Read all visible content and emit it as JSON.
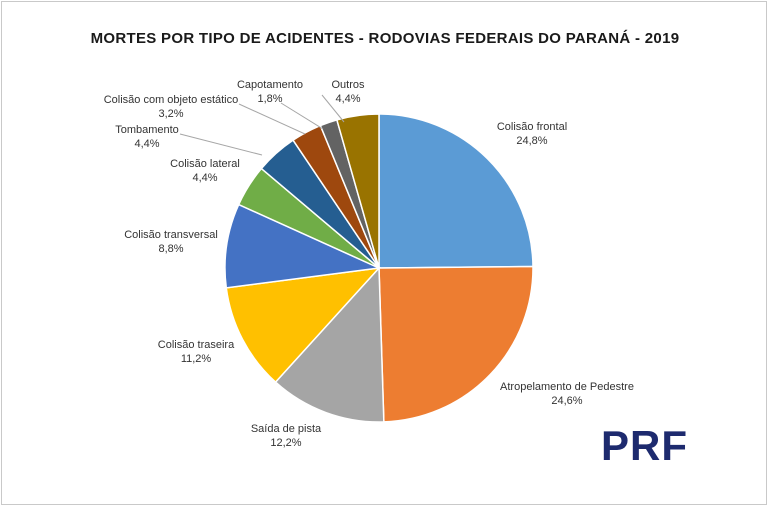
{
  "chart_data": {
    "type": "pie",
    "title": "MORTES POR TIPO DE ACIDENTES - RODOVIAS FEDERAIS DO PARANÁ - 2019",
    "slices": [
      {
        "label": "Colisão frontal",
        "value": 24.8,
        "value_label": "24,8%",
        "color": "#5b9bd5"
      },
      {
        "label": "Atropelamento de Pedestre",
        "value": 24.6,
        "value_label": "24,6%",
        "color": "#ed7d31"
      },
      {
        "label": "Saída de pista",
        "value": 12.2,
        "value_label": "12,2%",
        "color": "#a5a5a5"
      },
      {
        "label": "Colisão traseira",
        "value": 11.2,
        "value_label": "11,2%",
        "color": "#ffc000"
      },
      {
        "label": "Colisão transversal",
        "value": 8.8,
        "value_label": "8,8%",
        "color": "#4472c4"
      },
      {
        "label": "Colisão lateral",
        "value": 4.4,
        "value_label": "4,4%",
        "color": "#70ad47"
      },
      {
        "label": "Tombamento",
        "value": 4.4,
        "value_label": "4,4%",
        "color": "#255e91"
      },
      {
        "label": "Colisão com objeto estático",
        "value": 3.2,
        "value_label": "3,2%",
        "color": "#9e480e"
      },
      {
        "label": "Capotamento",
        "value": 1.8,
        "value_label": "1,8%",
        "color": "#636363"
      },
      {
        "label": "Outros",
        "value": 4.4,
        "value_label": "4,4%",
        "color": "#997300"
      }
    ],
    "legend": "none"
  },
  "brand": {
    "logo_text": "PRF"
  }
}
